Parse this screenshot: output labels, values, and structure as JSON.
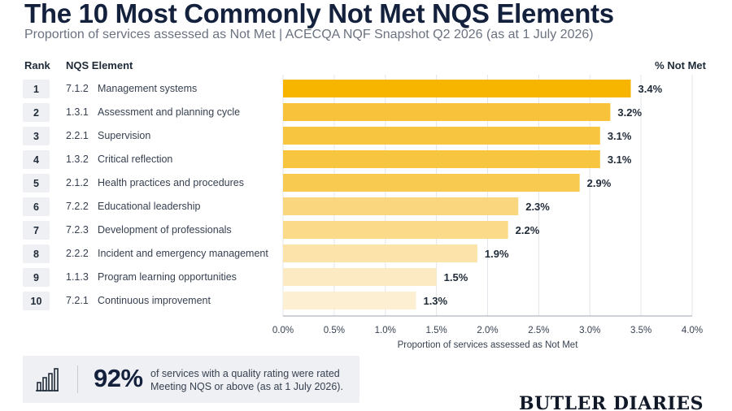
{
  "header": {
    "title": "The 10 Most Commonly Not Met NQS Elements",
    "subtitle": "Proportion of services assessed as Not Met  |  ACECQA NQF Snapshot Q2 2026 (as at 1 July 2026)"
  },
  "table_headers": {
    "rank": "Rank",
    "element": "NQS Element",
    "pct": "% Not Met"
  },
  "chart_data": {
    "type": "bar",
    "orientation": "horizontal",
    "ranks": [
      "1",
      "2",
      "3",
      "4",
      "5",
      "6",
      "7",
      "8",
      "9",
      "10"
    ],
    "codes": [
      "7.1.2",
      "1.3.1",
      "2.2.1",
      "1.3.2",
      "2.1.2",
      "7.2.2",
      "7.2.3",
      "2.2.2",
      "1.1.3",
      "7.2.1"
    ],
    "categories": [
      "Management systems",
      "Assessment and planning cycle",
      "Supervision",
      "Critical reflection",
      "Health practices and procedures",
      "Educational leadership",
      "Development of professionals",
      "Incident and emergency management",
      "Program learning opportunities",
      "Continuous improvement"
    ],
    "values": [
      3.4,
      3.2,
      3.1,
      3.1,
      2.9,
      2.3,
      2.2,
      1.9,
      1.5,
      1.3
    ],
    "value_labels": [
      "3.4%",
      "3.2%",
      "3.1%",
      "3.1%",
      "2.9%",
      "2.3%",
      "2.2%",
      "1.9%",
      "1.5%",
      "1.3%"
    ],
    "bar_colors": [
      "#f7b500",
      "#f8c23a",
      "#f8c541",
      "#f8c541",
      "#f8ca50",
      "#fad67f",
      "#fbda8a",
      "#fce3a9",
      "#fcebc2",
      "#fdf0d2"
    ],
    "xlim": [
      0,
      4.0
    ],
    "xticks": [
      "0.0%",
      "0.5%",
      "1.0%",
      "1.5%",
      "2.0%",
      "2.5%",
      "3.0%",
      "3.5%",
      "4.0%"
    ],
    "xlabel": "Proportion of services assessed as Not Met",
    "grid": "vertical"
  },
  "callout": {
    "icon": "bar-chart-icon",
    "big_value": "92%",
    "text": "of services with a quality rating were rated Meeting NQS or above (as at 1 July 2026)."
  },
  "brand": "BUTLER DIARIES"
}
